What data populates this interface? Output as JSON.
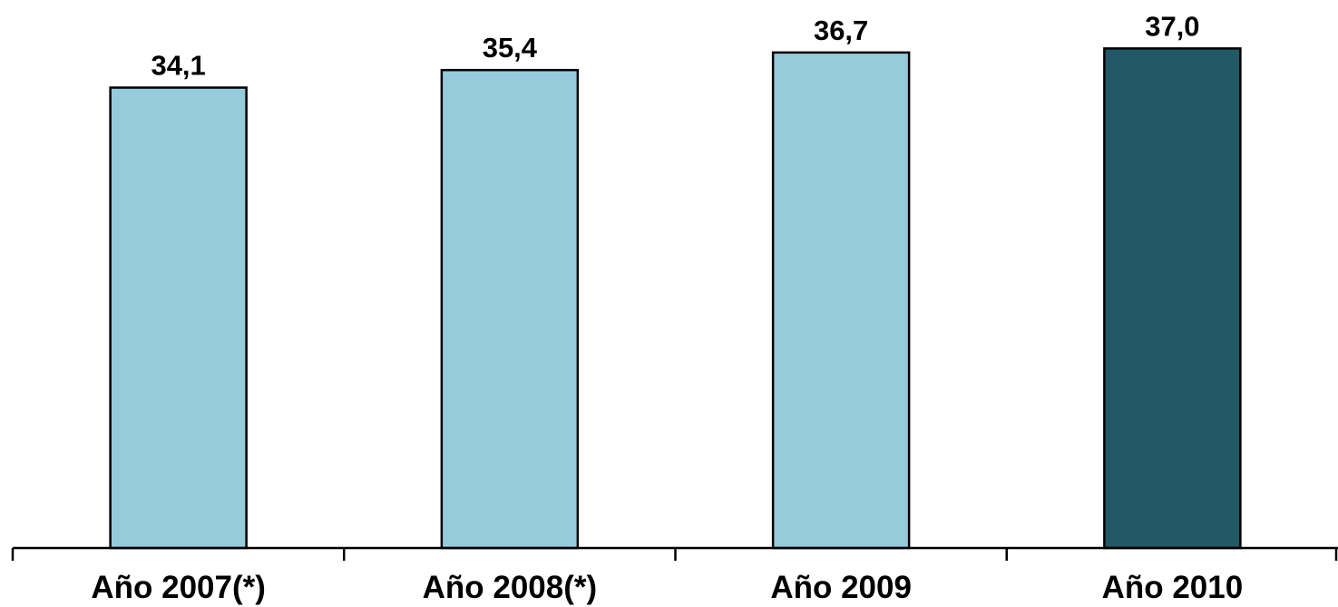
{
  "chart_data": {
    "type": "bar",
    "title": "",
    "xlabel": "",
    "ylabel": "",
    "categories": [
      "Año 2007(*)",
      "Año 2008(*)",
      "Año 2009",
      "Año 2010"
    ],
    "values": [
      34.1,
      35.4,
      36.7,
      37.0
    ],
    "value_labels": [
      "34,1",
      "35,4",
      "36,7",
      "37,0"
    ],
    "ylim": [
      0,
      37.9
    ],
    "grid": false,
    "legend": "none",
    "colors": {
      "default_bar": "#96cbdc",
      "highlight_bar": "#235966",
      "outline": "#000000"
    },
    "highlight_index": 3
  }
}
